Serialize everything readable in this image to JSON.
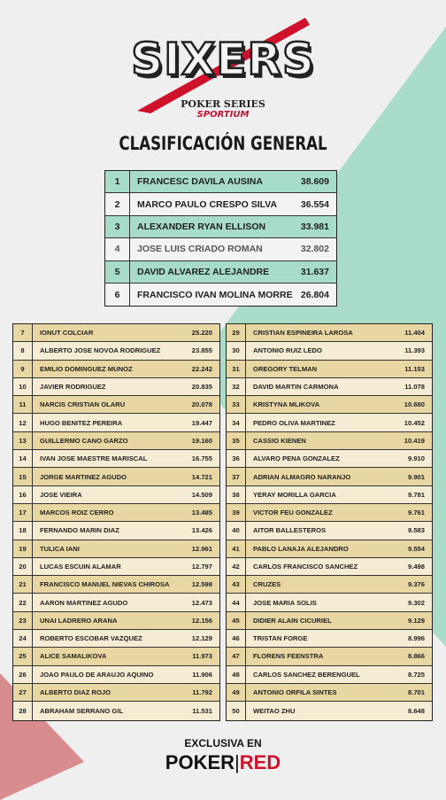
{
  "header": {
    "brand": "SIXERS",
    "subtitle": "POKER SERIES",
    "sponsor": "SPORTIUM"
  },
  "title": "CLASIFICACIÓN GENERAL",
  "top_table": {
    "rows": [
      [
        "1",
        "FRANCESC DAVILA AUSINA",
        "38.609"
      ],
      [
        "2",
        "MARCO PAULO CRESPO SILVA",
        "36.554"
      ],
      [
        "3",
        "ALEXANDER RYAN ELLISON",
        "33.981"
      ],
      [
        "4",
        "JOSE LUIS CRIADO ROMAN",
        "32.802"
      ],
      [
        "5",
        "DAVID ALVAREZ ALEJANDRE",
        "31.637"
      ],
      [
        "6",
        "FRANCISCO IVAN MOLINA MORRE",
        "26.804"
      ]
    ]
  },
  "left_table": {
    "rows": [
      [
        "7",
        "IONUT COLCIAR",
        "25.220"
      ],
      [
        "8",
        "ALBERTO JOSE NOVOA RODRIGUEZ",
        "23.855"
      ],
      [
        "9",
        "EMILIO DOMINGUEZ MUNOZ",
        "22.242"
      ],
      [
        "10",
        "JAVIER RODRIGUEZ",
        "20.835"
      ],
      [
        "11",
        "NARCIS CRISTIAN OLARU",
        "20.078"
      ],
      [
        "12",
        "HUGO BENITEZ PEREIRA",
        "19.447"
      ],
      [
        "13",
        "GUILLERMO CANO GARZO",
        "19.160"
      ],
      [
        "14",
        "IVAN JOSE MAESTRE MARISCAL",
        "16.755"
      ],
      [
        "15",
        "JORGE MARTINEZ AGUDO",
        "14.721"
      ],
      [
        "16",
        "JOSE VIEIRA",
        "14.509"
      ],
      [
        "17",
        "MARCOS ROIZ CERRO",
        "13.485"
      ],
      [
        "18",
        "FERNANDO MARIN DIAZ",
        "13.426"
      ],
      [
        "19",
        "TULICA IANI",
        "12.961"
      ],
      [
        "20",
        "LUCAS ESCUIN ALAMAR",
        "12.797"
      ],
      [
        "21",
        "FRANCISCO MANUEL NIEVAS CHIROSA",
        "12.598"
      ],
      [
        "22",
        "AARON MARTINEZ AGUDO",
        "12.473"
      ],
      [
        "23",
        "UNAI LADRERO ARANA",
        "12.156"
      ],
      [
        "24",
        "ROBERTO ESCOBAR VAZQUEZ",
        "12.129"
      ],
      [
        "25",
        "ALICE SAMALIKOVA",
        "11.973"
      ],
      [
        "26",
        "JOAO PAULO DE ARAUJO AQUINO",
        "11.906"
      ],
      [
        "27",
        "ALBERTO DIAZ ROJO",
        "11.792"
      ],
      [
        "28",
        "ABRAHAM SERRANO GIL",
        "11.531"
      ]
    ]
  },
  "right_table": {
    "rows": [
      [
        "29",
        "CRISTIAN ESPINEIRA LAROSA",
        "11.404"
      ],
      [
        "30",
        "ANTONIO RUIZ LEDO",
        "11.393"
      ],
      [
        "31",
        "GREGORY TELMAN",
        "11.153"
      ],
      [
        "32",
        "DAVID MARTIN CARMONA",
        "11.078"
      ],
      [
        "33",
        "KRISTYNA MLIKOVA",
        "10.680"
      ],
      [
        "34",
        "PEDRO OLIVA MARTINEZ",
        "10.452"
      ],
      [
        "35",
        "CASSIO KIENEN",
        "10.419"
      ],
      [
        "36",
        "ALVARO PENA GONZALEZ",
        "9.910"
      ],
      [
        "37",
        "ADRIAN ALMAGRO NARANJO",
        "9.901"
      ],
      [
        "38",
        "YERAY MORILLA GARCIA",
        "9.781"
      ],
      [
        "39",
        "VICTOR FEU GONZALEZ",
        "9.761"
      ],
      [
        "40",
        "AITOR BALLESTEROS",
        "9.583"
      ],
      [
        "41",
        "PABLO LANAJA ALEJANDRO",
        "9.554"
      ],
      [
        "42",
        "CARLOS FRANCISCO SANCHEZ",
        "9.498"
      ],
      [
        "43",
        "CRUZES",
        "9.376"
      ],
      [
        "44",
        "JOSE MARIA SOLIS",
        "9.302"
      ],
      [
        "45",
        "DIDIER ALAIN CICURIEL",
        "9.129"
      ],
      [
        "46",
        "TRISTAN FORGE",
        "8.996"
      ],
      [
        "47",
        "FLORENS FEENSTRA",
        "8.866"
      ],
      [
        "48",
        "CARLOS SANCHEZ BERENGUEL",
        "8.725"
      ],
      [
        "49",
        "ANTONIO ORFILA SINTES",
        "8.701"
      ],
      [
        "50",
        "WEITAO ZHU",
        "8.648"
      ]
    ]
  },
  "footer": {
    "text": "EXCLUSIVA EN",
    "brand": "POKER",
    "brand_accent": "RED"
  }
}
